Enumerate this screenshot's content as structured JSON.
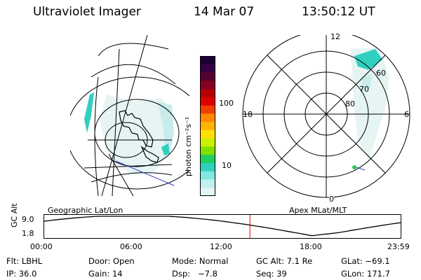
{
  "header": {
    "title": "Ultraviolet Imager",
    "date": "14 Mar 07",
    "time": "13:50:12 UT"
  },
  "colorbar": {
    "label": "photon cm⁻²s⁻¹",
    "ticks": [
      "100",
      "10"
    ],
    "colors_top_to_bottom": [
      "#1a0033",
      "#330044",
      "#550033",
      "#880022",
      "#b30000",
      "#d90000",
      "#f04000",
      "#ff8800",
      "#ffb300",
      "#ffe000",
      "#c8f000",
      "#80e000",
      "#20d060",
      "#30d0c0",
      "#80e8e0",
      "#c0f0f0",
      "#e6f4f4"
    ]
  },
  "left_panel": {
    "projection_label": "Geographic Lat/Lon"
  },
  "right_panel": {
    "projection_label": "Apex MLat/MLT",
    "mlt_labels": {
      "top": "12",
      "left": "18",
      "right": "6",
      "bottom": "0"
    },
    "lat_labels": [
      "60",
      "70",
      "80"
    ]
  },
  "altitude_plot": {
    "ylabel": "GC Alt",
    "yticks": [
      "9.0",
      "1.8"
    ],
    "xticks": [
      "00:00",
      "06:00",
      "12:00",
      "18:00",
      "23:59"
    ],
    "current_marker_time": "13:50:12"
  },
  "info": {
    "row1": [
      "Flt: LBHL",
      "Door: Open",
      "Mode: Normal",
      "GC Alt: 7.1 Re",
      "GLat: −69.1"
    ],
    "row2": [
      "IP: 36.0",
      "Gain: 14",
      "Dsp:   −7.8",
      "Seq: 39",
      "GLon: 171.7"
    ]
  },
  "colors": {
    "aurora_cyan": "#30d0c0",
    "aurora_pale": "#c8ecec",
    "marker_red": "#e00000",
    "satellite_track": "#3040c0",
    "green_dot": "#20d040"
  }
}
